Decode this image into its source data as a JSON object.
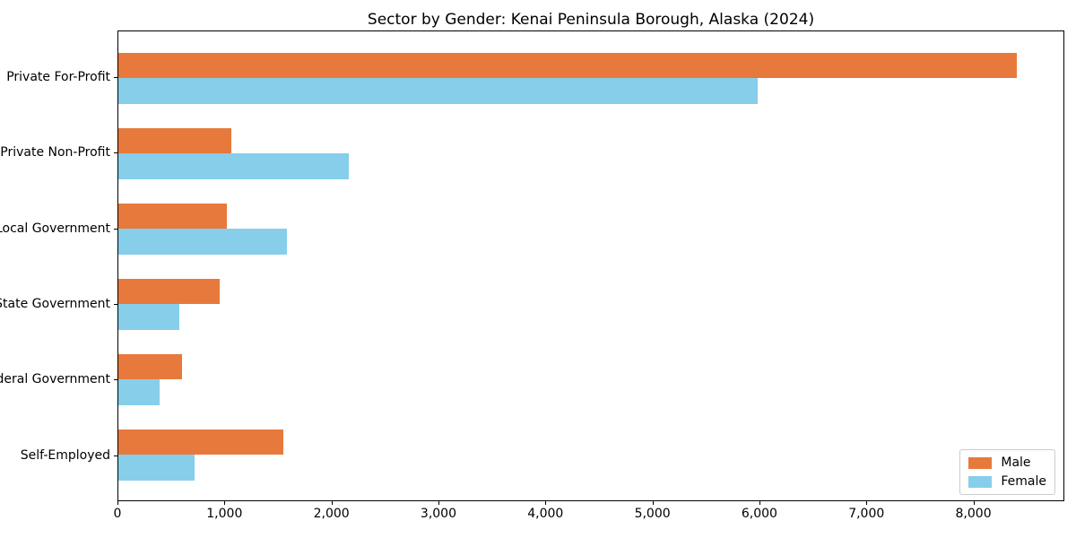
{
  "chart_data": {
    "type": "bar",
    "orientation": "horizontal",
    "title": "Sector by Gender: Kenai Peninsula Borough, Alaska (2024)",
    "categories": [
      "Private For-Profit",
      "Private Non-Profit",
      "Local Government",
      "State Government",
      "Federal Government",
      "Self-Employed"
    ],
    "series": [
      {
        "name": "Male",
        "color": "#E8793C",
        "values": [
          8410,
          1060,
          1020,
          950,
          600,
          1545
        ]
      },
      {
        "name": "Female",
        "color": "#87CEEB",
        "values": [
          5990,
          2160,
          1580,
          575,
          385,
          710
        ]
      }
    ],
    "xlabel": "",
    "ylabel": "",
    "xlim": [
      0,
      8850
    ],
    "xticks": [
      0,
      1000,
      2000,
      3000,
      4000,
      5000,
      6000,
      7000,
      8000
    ],
    "xtick_labels": [
      "0",
      "1,000",
      "2,000",
      "3,000",
      "4,000",
      "5,000",
      "6,000",
      "7,000",
      "8,000"
    ],
    "grid": false,
    "legend": {
      "position": "lower right"
    },
    "colors": {
      "male": "#E8793C",
      "female": "#87CEEB",
      "spine": "#000000",
      "legend_border": "#cccccc"
    }
  }
}
